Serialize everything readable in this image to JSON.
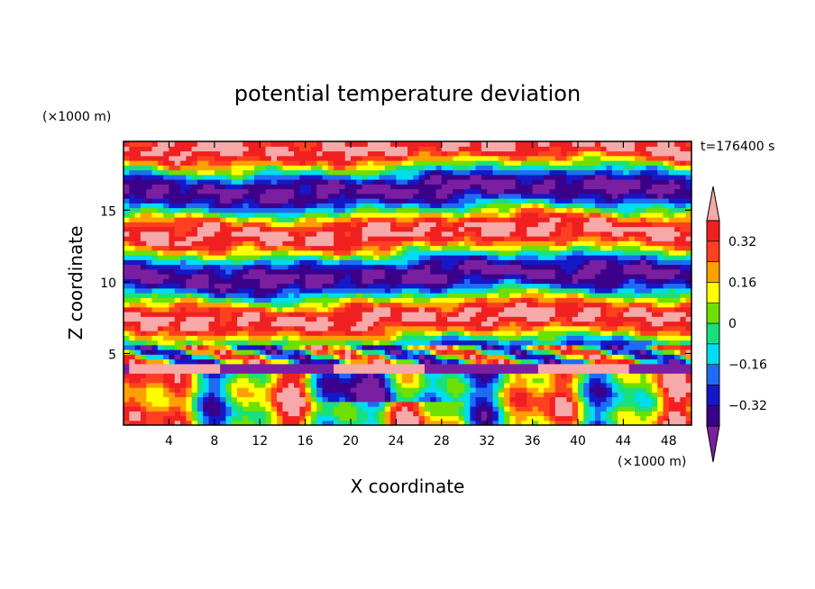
{
  "chart_data": {
    "type": "heatmap",
    "title": "potential temperature deviation",
    "xlabel": "X coordinate",
    "ylabel": "Z coordinate",
    "x_unit": "(×1000 m)",
    "y_unit": "(×1000 m)",
    "time_label": "t=176400 s",
    "xlim": [
      0,
      50
    ],
    "ylim": [
      0,
      19.8
    ],
    "x_ticks": [
      4,
      8,
      12,
      16,
      20,
      24,
      28,
      32,
      36,
      40,
      44,
      48
    ],
    "y_ticks": [
      5,
      10,
      15
    ],
    "colorbar": {
      "levels": [
        -0.4,
        -0.32,
        -0.24,
        -0.16,
        -0.08,
        0,
        0.08,
        0.16,
        0.24,
        0.32,
        0.4
      ],
      "labels": [
        "0.32",
        "0.16",
        "0",
        "−0.16",
        "−0.32"
      ],
      "label_values": [
        0.32,
        0.16,
        0,
        -0.16,
        -0.32
      ],
      "colors": [
        "#7a1fa0",
        "#3a008a",
        "#1418c8",
        "#1e6cf5",
        "#00dcf0",
        "#19e07c",
        "#6ee000",
        "#ffff00",
        "#ffa000",
        "#ff4020",
        "#f02020",
        "#f7a8a8"
      ],
      "extend": "both"
    }
  }
}
